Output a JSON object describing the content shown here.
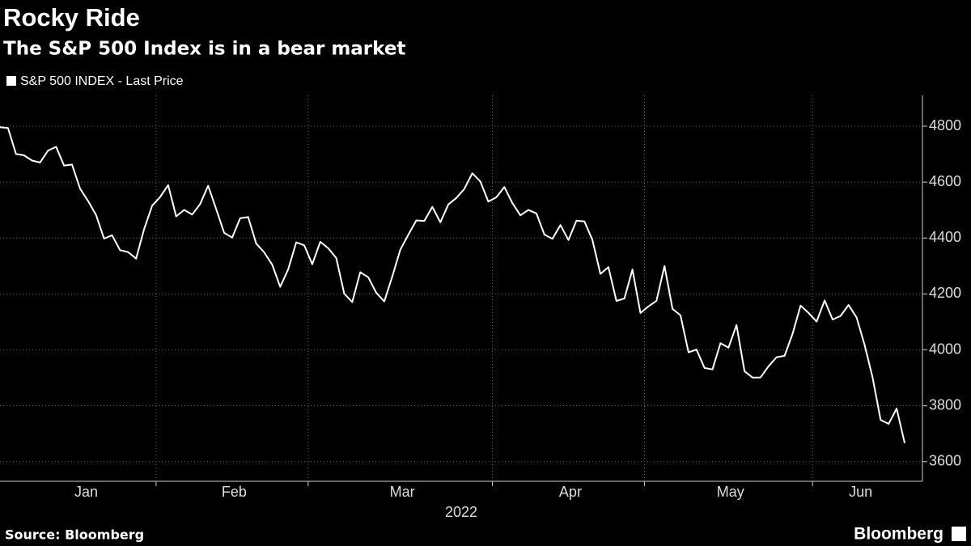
{
  "chart_data": {
    "type": "line",
    "title": "Rocky Ride",
    "subtitle": "The S&P 500 Index is in a bear market",
    "xlabel": "2022",
    "source": "Source: Bloomberg",
    "brand": "Bloomberg",
    "grid": true,
    "y_axis_side": "right",
    "categories": [
      "Jan",
      "Jan",
      "Jan",
      "Jan",
      "Jan",
      "Jan",
      "Jan",
      "Jan",
      "Jan",
      "Jan",
      "Jan",
      "Jan",
      "Jan",
      "Jan",
      "Jan",
      "Jan",
      "Jan",
      "Jan",
      "Jan",
      "Jan",
      "Feb",
      "Feb",
      "Feb",
      "Feb",
      "Feb",
      "Feb",
      "Feb",
      "Feb",
      "Feb",
      "Feb",
      "Feb",
      "Feb",
      "Feb",
      "Feb",
      "Feb",
      "Feb",
      "Feb",
      "Feb",
      "Feb",
      "Mar",
      "Mar",
      "Mar",
      "Mar",
      "Mar",
      "Mar",
      "Mar",
      "Mar",
      "Mar",
      "Mar",
      "Mar",
      "Mar",
      "Mar",
      "Mar",
      "Mar",
      "Mar",
      "Mar",
      "Mar",
      "Mar",
      "Mar",
      "Mar",
      "Mar",
      "Mar",
      "Apr",
      "Apr",
      "Apr",
      "Apr",
      "Apr",
      "Apr",
      "Apr",
      "Apr",
      "Apr",
      "Apr",
      "Apr",
      "Apr",
      "Apr",
      "Apr",
      "Apr",
      "Apr",
      "Apr",
      "Apr",
      "Apr",
      "May",
      "May",
      "May",
      "May",
      "May",
      "May",
      "May",
      "May",
      "May",
      "May",
      "May",
      "May",
      "May",
      "May",
      "May",
      "May",
      "May",
      "May",
      "May",
      "May",
      "May",
      "Jun",
      "Jun",
      "Jun",
      "Jun",
      "Jun",
      "Jun",
      "Jun",
      "Jun",
      "Jun",
      "Jun",
      "Jun",
      "Jun"
    ],
    "series": [
      {
        "name": "S&P 500 INDEX - Last Price",
        "color": "#ffffff",
        "values": [
          4796.56,
          4793.54,
          4700.58,
          4696.05,
          4677.03,
          4670.29,
          4713.07,
          4726.35,
          4659.03,
          4662.85,
          4577.11,
          4532.76,
          4482.73,
          4397.94,
          4410.13,
          4356.45,
          4349.93,
          4326.51,
          4431.85,
          4515.55,
          4546.54,
          4589.38,
          4477.44,
          4500.53,
          4483.87,
          4521.54,
          4587.18,
          4504.08,
          4418.64,
          4401.67,
          4471.07,
          4475.01,
          4380.26,
          4348.87,
          4304.76,
          4225.5,
          4288.7,
          4384.65,
          4373.94,
          4306.26,
          4386.54,
          4363.49,
          4328.87,
          4201.09,
          4170.7,
          4277.88,
          4259.52,
          4204.31,
          4173.11,
          4262.45,
          4357.86,
          4411.67,
          4463.12,
          4461.18,
          4511.61,
          4456.24,
          4520.16,
          4543.06,
          4575.52,
          4631.6,
          4602.45,
          4530.41,
          4545.86,
          4582.64,
          4525.12,
          4481.15,
          4500.21,
          4488.28,
          4412.53,
          4397.45,
          4446.59,
          4392.59,
          4462.21,
          4459.45,
          4393.66,
          4271.78,
          4296.12,
          4175.2,
          4183.96,
          4287.5,
          4131.93,
          4155.38,
          4175.48,
          4300.17,
          4146.87,
          4123.34,
          3991.24,
          4001.05,
          3935.18,
          3930.08,
          4023.89,
          4008.01,
          4088.85,
          3923.68,
          3900.79,
          3901.36,
          3941.48,
          3973.75,
          3978.73,
          4057.84,
          4158.24,
          4132.15,
          4101.23,
          4176.82,
          4108.54,
          4121.43,
          4160.68,
          4115.77,
          4017.82,
          3900.86,
          3749.63,
          3735.48,
          3789.99,
          3666.77
        ]
      }
    ],
    "ylim": [
      3530,
      4910
    ],
    "yticks": [
      3600,
      3800,
      4000,
      4200,
      4400,
      4600,
      4800
    ]
  }
}
